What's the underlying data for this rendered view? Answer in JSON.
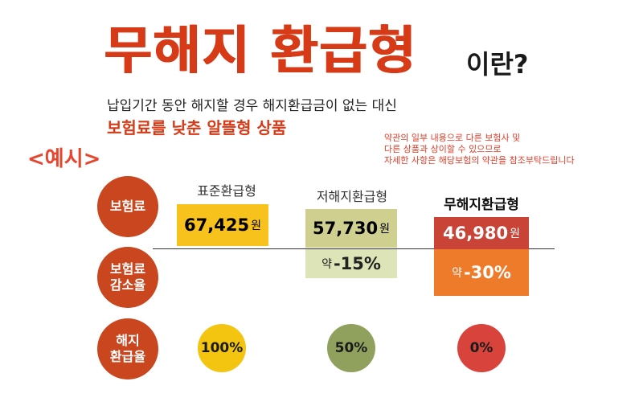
{
  "header": {
    "title": "무해지 환급형",
    "title_suffix": "이란?",
    "subtitle": "납입기간 동안 해지할 경우 해지환급금이 없는 대신",
    "highlight": "보험료를 낮춘 알뜰형 상품"
  },
  "example_label": "<예시>",
  "notice_lines": [
    "약관의 일부 내용으로 다른 보험사 및",
    "다른 상품과 상이할 수 있으므로",
    "자세한 사항은 해당보험의 약관을 참조부탁드립니다"
  ],
  "rows": {
    "premium": "보험료",
    "reduction": "보험료\n감소율",
    "refund": "해지\n환급율"
  },
  "columns": [
    {
      "name": "표준환급형",
      "price": "67,425",
      "unit": "원",
      "reduction_prefix": "",
      "reduction": "",
      "refund": "100%"
    },
    {
      "name": "저해지환급형",
      "price": "57,730",
      "unit": "원",
      "reduction_prefix": "약",
      "reduction": "-15%",
      "refund": "50%"
    },
    {
      "name": "무해지환급형",
      "price": "46,980",
      "unit": "원",
      "reduction_prefix": "약",
      "reduction": "-30%",
      "refund": "0%"
    }
  ],
  "colors": {
    "title": "#d63a17",
    "row_circle": "#c9461f",
    "standard_price_bg": "#f7c21b",
    "low_price_bg": "#cfd090",
    "low_reduction_bg": "#dde4b8",
    "no_price_bg": "#c94437",
    "no_reduction_bg": "#ee7b2a",
    "refund_standard": "#f3c511",
    "refund_low": "#8fa15c",
    "refund_no": "#d8443c"
  }
}
